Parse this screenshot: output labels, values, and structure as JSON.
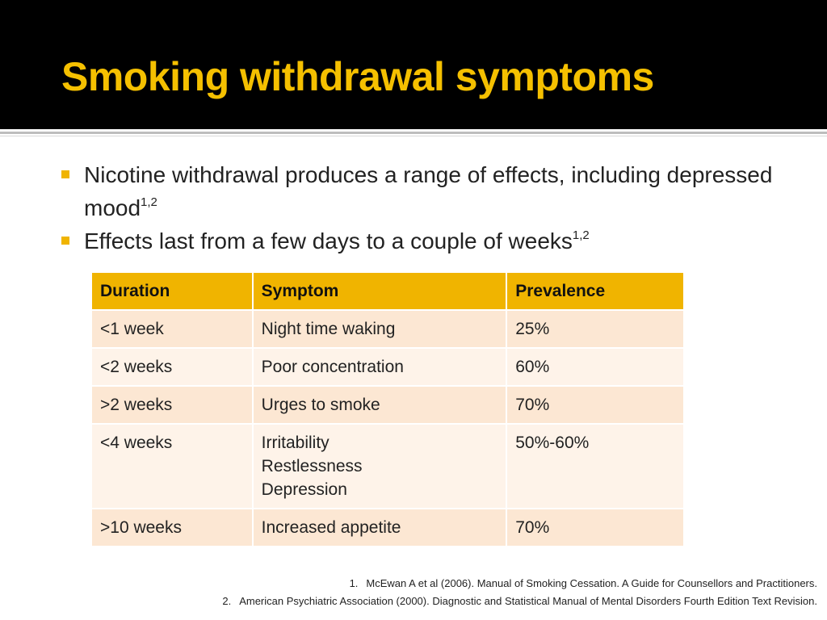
{
  "title": "Smoking withdrawal symptoms",
  "colors": {
    "title": "#f5c000",
    "header_bg": "#000000",
    "accent": "#f0b400",
    "row_odd": "#fce7d3",
    "row_even": "#fef3e9"
  },
  "bullets": [
    {
      "text": "Nicotine withdrawal produces a range of effects, including depressed mood",
      "sup": "1,2"
    },
    {
      "text": "Effects last from a few days to a couple of weeks",
      "sup": "1,2"
    }
  ],
  "table": {
    "headers": [
      "Duration",
      "Symptom",
      "Prevalence"
    ],
    "rows": [
      {
        "duration": "<1 week",
        "symptoms": [
          "Night time waking"
        ],
        "prevalence": "25%"
      },
      {
        "duration": "<2 weeks",
        "symptoms": [
          "Poor concentration"
        ],
        "prevalence": "60%"
      },
      {
        "duration": ">2 weeks",
        "symptoms": [
          "Urges to smoke"
        ],
        "prevalence": "70%"
      },
      {
        "duration": "<4 weeks",
        "symptoms": [
          "Irritability",
          "Restlessness",
          "Depression"
        ],
        "prevalence": "50%-60%"
      },
      {
        "duration": ">10 weeks",
        "symptoms": [
          "Increased appetite"
        ],
        "prevalence": "70%"
      }
    ]
  },
  "footnotes": [
    {
      "num": "1.",
      "text": "McEwan A et al (2006). Manual of Smoking Cessation. A Guide for Counsellors and Practitioners."
    },
    {
      "num": "2.",
      "text": "American Psychiatric Association (2000). Diagnostic and Statistical Manual of Mental Disorders Fourth Edition Text Revision."
    }
  ]
}
